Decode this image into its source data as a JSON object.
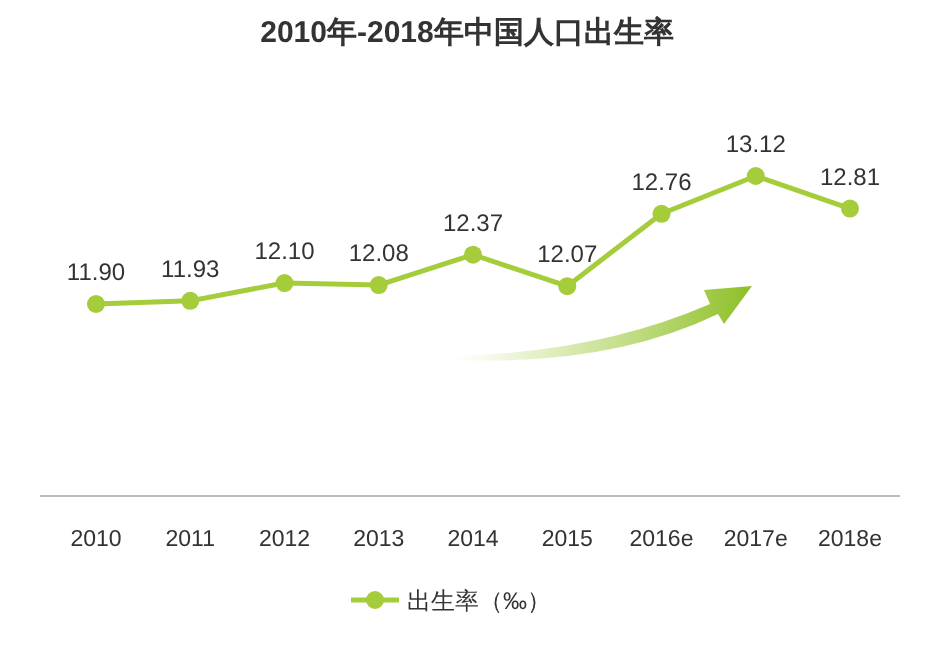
{
  "chart_data": {
    "type": "line",
    "title": "2010年-2018年中国人口出生率",
    "categories": [
      "2010",
      "2011",
      "2012",
      "2013",
      "2014",
      "2015",
      "2016e",
      "2017e",
      "2018e"
    ],
    "series": [
      {
        "name": "出生率（‰）",
        "color": "#a5cc3a",
        "values": [
          11.9,
          11.93,
          12.1,
          12.08,
          12.37,
          12.07,
          12.76,
          13.12,
          12.81
        ],
        "value_labels": [
          "11.90",
          "11.93",
          "12.10",
          "12.08",
          "12.37",
          "12.07",
          "12.76",
          "13.12",
          "12.81"
        ]
      }
    ],
    "marker": "circle",
    "legend": "bottom"
  }
}
